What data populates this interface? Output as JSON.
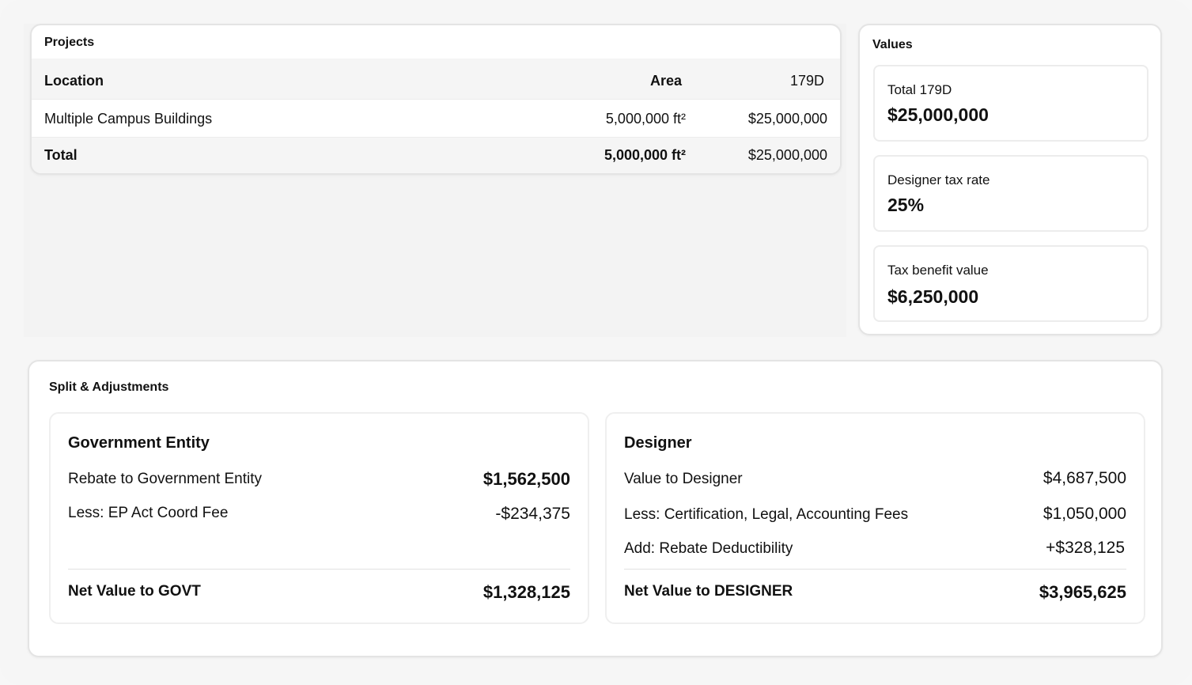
{
  "projects": {
    "title": "Projects",
    "columns": [
      "Location",
      "Area",
      "179D"
    ],
    "rows": [
      {
        "location": "Multiple Campus Buildings",
        "area": "5,000,000 ft²",
        "value": "$25,000,000"
      }
    ],
    "total": {
      "label": "Total",
      "area": "5,000,000 ft²",
      "value": "$25,000,000"
    }
  },
  "values": {
    "title": "Values",
    "stats": [
      {
        "label": "Total 179D",
        "value": "$25,000,000"
      },
      {
        "label": "Designer tax rate",
        "value": "25%"
      },
      {
        "label": "Tax benefit value",
        "value": "$6,250,000"
      }
    ]
  },
  "split": {
    "title": "Split & Adjustments",
    "government": {
      "title": "Government Entity",
      "lines": [
        {
          "label": "Rebate to Government Entity",
          "value": "$1,562,500"
        },
        {
          "label": "Less: EP Act Coord Fee",
          "value": "-$234,375"
        }
      ],
      "net": {
        "label": "Net Value to GOVT",
        "value": "$1,328,125"
      }
    },
    "designer": {
      "title": "Designer",
      "lines": [
        {
          "label": "Value to Designer",
          "value": "$4,687,500"
        },
        {
          "label": "Less: Certification, Legal, Accounting Fees",
          "value": "$1,050,000"
        },
        {
          "label": "Add: Rebate Deductibility",
          "value": "+$328,125"
        }
      ],
      "net": {
        "label": "Net Value to DESIGNER",
        "value": "$3,965,625"
      }
    }
  }
}
